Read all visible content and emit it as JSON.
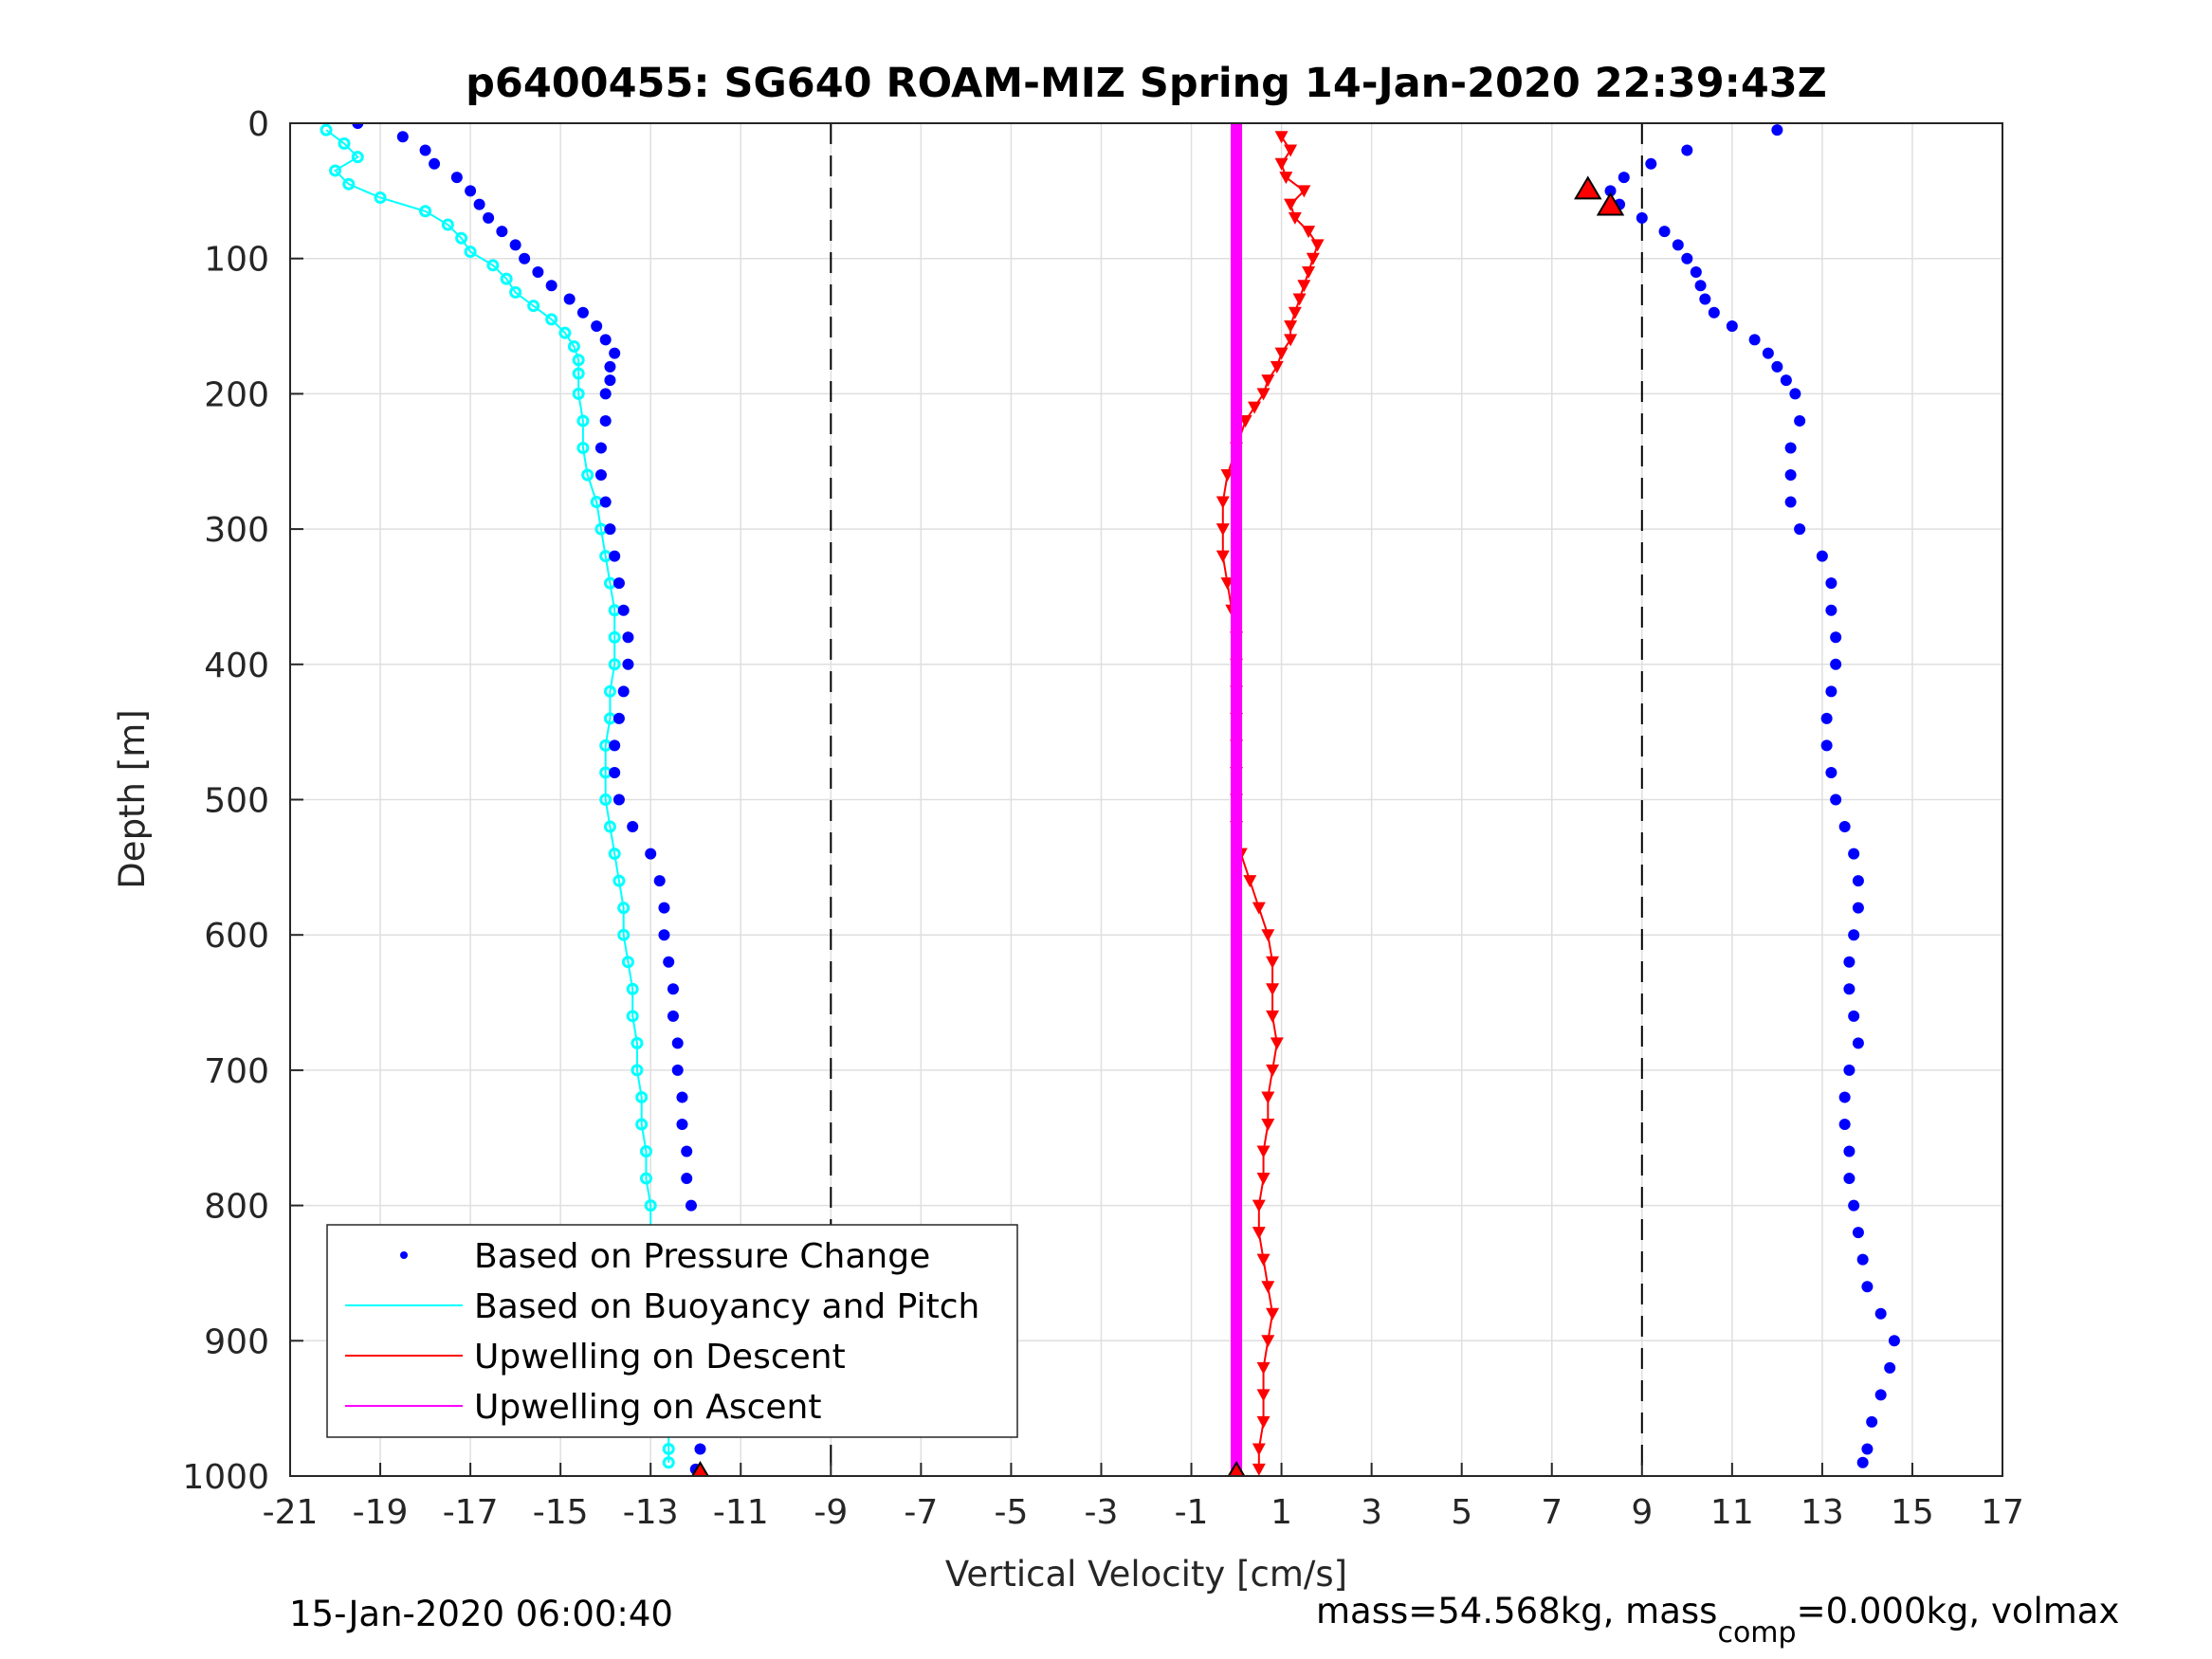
{
  "chart_data": {
    "type": "scatter",
    "title": "p6400455: SG640 ROAM-MIZ Spring 14-Jan-2020 22:39:43Z",
    "xlabel": "Vertical Velocity [cm/s]",
    "ylabel": "Depth [m]",
    "xlim": [
      -21,
      17
    ],
    "ylim": [
      1000,
      0
    ],
    "y_reversed": true,
    "grid": true,
    "xticks": [
      -21,
      -19,
      -17,
      -15,
      -13,
      -11,
      -9,
      -7,
      -5,
      -3,
      -1,
      1,
      3,
      5,
      7,
      9,
      11,
      13,
      15,
      17
    ],
    "yticks": [
      0,
      100,
      200,
      300,
      400,
      500,
      600,
      700,
      800,
      900,
      1000
    ],
    "reference_lines_x": [
      -9,
      9
    ],
    "legend_position": "bottom-left",
    "series": [
      {
        "name": "Based on Pressure Change",
        "style": "dots",
        "color": "#0000ff",
        "dive": {
          "depth": [
            0,
            10,
            20,
            30,
            40,
            50,
            60,
            70,
            80,
            90,
            100,
            110,
            120,
            130,
            140,
            150,
            160,
            170,
            180,
            190,
            200,
            220,
            240,
            260,
            280,
            300,
            320,
            340,
            360,
            380,
            400,
            420,
            440,
            460,
            480,
            500,
            520,
            540,
            560,
            580,
            600,
            620,
            640,
            660,
            680,
            700,
            720,
            740,
            760,
            780,
            800,
            820,
            840,
            860,
            880,
            900,
            920,
            940,
            960,
            980,
            995
          ],
          "velocity": [
            -19.5,
            -18.5,
            -18.0,
            -17.8,
            -17.3,
            -17.0,
            -16.8,
            -16.6,
            -16.3,
            -16.0,
            -15.8,
            -15.5,
            -15.2,
            -14.8,
            -14.5,
            -14.2,
            -14.0,
            -13.8,
            -13.9,
            -13.9,
            -14.0,
            -14.0,
            -14.1,
            -14.1,
            -14.0,
            -13.9,
            -13.8,
            -13.7,
            -13.6,
            -13.5,
            -13.5,
            -13.6,
            -13.7,
            -13.8,
            -13.8,
            -13.7,
            -13.4,
            -13.0,
            -12.8,
            -12.7,
            -12.7,
            -12.6,
            -12.5,
            -12.5,
            -12.4,
            -12.4,
            -12.3,
            -12.3,
            -12.2,
            -12.2,
            -12.1,
            -12.1,
            -12.0,
            -12.0,
            -12.0,
            -12.0,
            -12.0,
            -11.9,
            -11.9,
            -11.9,
            -12.0
          ]
        },
        "climb": {
          "depth": [
            5,
            20,
            30,
            40,
            50,
            60,
            70,
            80,
            90,
            100,
            110,
            120,
            130,
            140,
            150,
            160,
            170,
            180,
            190,
            200,
            220,
            240,
            260,
            280,
            300,
            320,
            340,
            360,
            380,
            400,
            420,
            440,
            460,
            480,
            500,
            520,
            540,
            560,
            580,
            600,
            620,
            640,
            660,
            680,
            700,
            720,
            740,
            760,
            780,
            800,
            820,
            840,
            860,
            880,
            900,
            920,
            940,
            960,
            980,
            990
          ],
          "velocity": [
            12.0,
            10.0,
            9.2,
            8.6,
            8.3,
            8.5,
            9.0,
            9.5,
            9.8,
            10.0,
            10.2,
            10.3,
            10.4,
            10.6,
            11.0,
            11.5,
            11.8,
            12.0,
            12.2,
            12.4,
            12.5,
            12.3,
            12.3,
            12.3,
            12.5,
            13.0,
            13.2,
            13.2,
            13.3,
            13.3,
            13.2,
            13.1,
            13.1,
            13.2,
            13.3,
            13.5,
            13.7,
            13.8,
            13.8,
            13.7,
            13.6,
            13.6,
            13.7,
            13.8,
            13.6,
            13.5,
            13.5,
            13.6,
            13.6,
            13.7,
            13.8,
            13.9,
            14.0,
            14.3,
            14.6,
            14.5,
            14.3,
            14.1,
            14.0,
            13.9
          ]
        }
      },
      {
        "name": "Based on Buoyancy and Pitch",
        "style": "line-with-circles",
        "color": "#00ffff",
        "depth": [
          5,
          15,
          25,
          35,
          45,
          55,
          65,
          75,
          85,
          95,
          105,
          115,
          125,
          135,
          145,
          155,
          165,
          175,
          185,
          200,
          220,
          240,
          260,
          280,
          300,
          320,
          340,
          360,
          380,
          400,
          420,
          440,
          460,
          480,
          500,
          520,
          540,
          560,
          580,
          600,
          620,
          640,
          660,
          680,
          700,
          720,
          740,
          760,
          780,
          800,
          820,
          840,
          860,
          880,
          900,
          920,
          940,
          960,
          980,
          990
        ],
        "velocity": [
          -20.2,
          -19.8,
          -19.5,
          -20.0,
          -19.7,
          -19.0,
          -18.0,
          -17.5,
          -17.2,
          -17.0,
          -16.5,
          -16.2,
          -16.0,
          -15.6,
          -15.2,
          -14.9,
          -14.7,
          -14.6,
          -14.6,
          -14.6,
          -14.5,
          -14.5,
          -14.4,
          -14.2,
          -14.1,
          -14.0,
          -13.9,
          -13.8,
          -13.8,
          -13.8,
          -13.9,
          -13.9,
          -14.0,
          -14.0,
          -14.0,
          -13.9,
          -13.8,
          -13.7,
          -13.6,
          -13.6,
          -13.5,
          -13.4,
          -13.4,
          -13.3,
          -13.3,
          -13.2,
          -13.2,
          -13.1,
          -13.1,
          -13.0,
          -13.0,
          -12.9,
          -12.9,
          -12.8,
          -12.8,
          -12.7,
          -12.7,
          -12.6,
          -12.6,
          -12.6
        ]
      },
      {
        "name": "Upwelling on Descent",
        "style": "line-with-down-triangles",
        "color": "#ff0000",
        "depth": [
          10,
          20,
          30,
          40,
          50,
          60,
          70,
          80,
          90,
          100,
          110,
          120,
          130,
          140,
          150,
          160,
          170,
          180,
          190,
          200,
          210,
          220,
          240,
          260,
          280,
          300,
          320,
          340,
          360,
          380,
          400,
          420,
          440,
          460,
          480,
          500,
          520,
          540,
          560,
          580,
          600,
          620,
          640,
          660,
          680,
          700,
          720,
          740,
          760,
          780,
          800,
          820,
          840,
          860,
          880,
          900,
          920,
          940,
          960,
          980,
          995
        ],
        "velocity": [
          1.0,
          1.2,
          1.0,
          1.1,
          1.5,
          1.2,
          1.3,
          1.6,
          1.8,
          1.7,
          1.6,
          1.5,
          1.4,
          1.3,
          1.2,
          1.2,
          1.0,
          0.9,
          0.7,
          0.6,
          0.4,
          0.2,
          0.0,
          -0.2,
          -0.3,
          -0.3,
          -0.3,
          -0.2,
          -0.1,
          0.0,
          0.0,
          0.0,
          0.0,
          0.0,
          0.0,
          0.0,
          0.0,
          0.1,
          0.3,
          0.5,
          0.7,
          0.8,
          0.8,
          0.8,
          0.9,
          0.8,
          0.7,
          0.7,
          0.6,
          0.6,
          0.5,
          0.5,
          0.6,
          0.7,
          0.8,
          0.7,
          0.6,
          0.6,
          0.6,
          0.5,
          0.5
        ]
      },
      {
        "name": "Upwelling on Ascent",
        "style": "thick-line",
        "color": "#ff00ff",
        "depth": [
          0,
          1000
        ],
        "velocity": [
          0,
          0
        ]
      }
    ],
    "markers": [
      {
        "depth": 1000,
        "velocity": -11.9,
        "shape": "triangle-up",
        "color": "#ff0000"
      },
      {
        "depth": 1000,
        "velocity": 0,
        "shape": "triangle-up",
        "color": "#ff0000"
      },
      {
        "depth": 50,
        "velocity": 7.8,
        "shape": "triangle-up",
        "color": "#ff0000"
      },
      {
        "depth": 62,
        "velocity": 8.3,
        "shape": "triangle-up",
        "color": "#ff0000"
      }
    ]
  },
  "footer": {
    "timestamp": "15-Jan-2020 06:00:40",
    "mass_text": "mass=54.568kg, mass",
    "mass_sub": "comp",
    "mass_rest": "=0.000kg, volmax"
  }
}
